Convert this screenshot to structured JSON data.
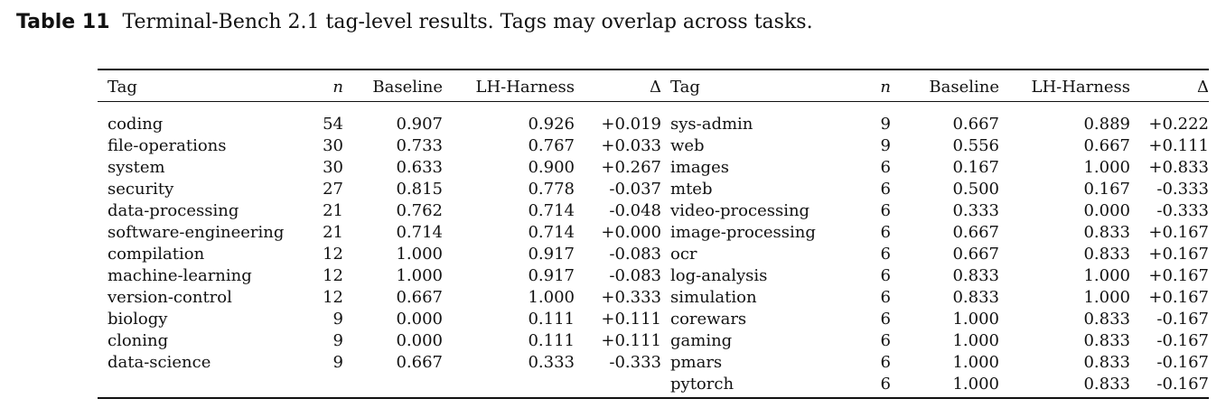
{
  "caption": {
    "label": "Table 11",
    "text": "Terminal-Bench 2.1 tag-level results. Tags may overlap across tasks."
  },
  "table": {
    "headers": {
      "tag": "Tag",
      "n": "n",
      "baseline": "Baseline",
      "lh_harness": "LH-Harness",
      "delta": "Δ"
    },
    "left": [
      {
        "tag": "coding",
        "n": "54",
        "baseline": "0.907",
        "lh": "0.926",
        "delta": "+0.019"
      },
      {
        "tag": "file-operations",
        "n": "30",
        "baseline": "0.733",
        "lh": "0.767",
        "delta": "+0.033"
      },
      {
        "tag": "system",
        "n": "30",
        "baseline": "0.633",
        "lh": "0.900",
        "delta": "+0.267"
      },
      {
        "tag": "security",
        "n": "27",
        "baseline": "0.815",
        "lh": "0.778",
        "delta": "-0.037"
      },
      {
        "tag": "data-processing",
        "n": "21",
        "baseline": "0.762",
        "lh": "0.714",
        "delta": "-0.048"
      },
      {
        "tag": "software-engineering",
        "n": "21",
        "baseline": "0.714",
        "lh": "0.714",
        "delta": "+0.000"
      },
      {
        "tag": "compilation",
        "n": "12",
        "baseline": "1.000",
        "lh": "0.917",
        "delta": "-0.083"
      },
      {
        "tag": "machine-learning",
        "n": "12",
        "baseline": "1.000",
        "lh": "0.917",
        "delta": "-0.083"
      },
      {
        "tag": "version-control",
        "n": "12",
        "baseline": "0.667",
        "lh": "1.000",
        "delta": "+0.333"
      },
      {
        "tag": "biology",
        "n": "9",
        "baseline": "0.000",
        "lh": "0.111",
        "delta": "+0.111"
      },
      {
        "tag": "cloning",
        "n": "9",
        "baseline": "0.000",
        "lh": "0.111",
        "delta": "+0.111"
      },
      {
        "tag": "data-science",
        "n": "9",
        "baseline": "0.667",
        "lh": "0.333",
        "delta": "-0.333"
      },
      {
        "tag": "",
        "n": "",
        "baseline": "",
        "lh": "",
        "delta": ""
      }
    ],
    "right": [
      {
        "tag": "sys-admin",
        "n": "9",
        "baseline": "0.667",
        "lh": "0.889",
        "delta": "+0.222"
      },
      {
        "tag": "web",
        "n": "9",
        "baseline": "0.556",
        "lh": "0.667",
        "delta": "+0.111"
      },
      {
        "tag": "images",
        "n": "6",
        "baseline": "0.167",
        "lh": "1.000",
        "delta": "+0.833"
      },
      {
        "tag": "mteb",
        "n": "6",
        "baseline": "0.500",
        "lh": "0.167",
        "delta": "-0.333"
      },
      {
        "tag": "video-processing",
        "n": "6",
        "baseline": "0.333",
        "lh": "0.000",
        "delta": "-0.333"
      },
      {
        "tag": "image-processing",
        "n": "6",
        "baseline": "0.667",
        "lh": "0.833",
        "delta": "+0.167"
      },
      {
        "tag": "ocr",
        "n": "6",
        "baseline": "0.667",
        "lh": "0.833",
        "delta": "+0.167"
      },
      {
        "tag": "log-analysis",
        "n": "6",
        "baseline": "0.833",
        "lh": "1.000",
        "delta": "+0.167"
      },
      {
        "tag": "simulation",
        "n": "6",
        "baseline": "0.833",
        "lh": "1.000",
        "delta": "+0.167"
      },
      {
        "tag": "corewars",
        "n": "6",
        "baseline": "1.000",
        "lh": "0.833",
        "delta": "-0.167"
      },
      {
        "tag": "gaming",
        "n": "6",
        "baseline": "1.000",
        "lh": "0.833",
        "delta": "-0.167"
      },
      {
        "tag": "pmars",
        "n": "6",
        "baseline": "1.000",
        "lh": "0.833",
        "delta": "-0.167"
      },
      {
        "tag": "pytorch",
        "n": "6",
        "baseline": "1.000",
        "lh": "0.833",
        "delta": "-0.167"
      }
    ]
  }
}
